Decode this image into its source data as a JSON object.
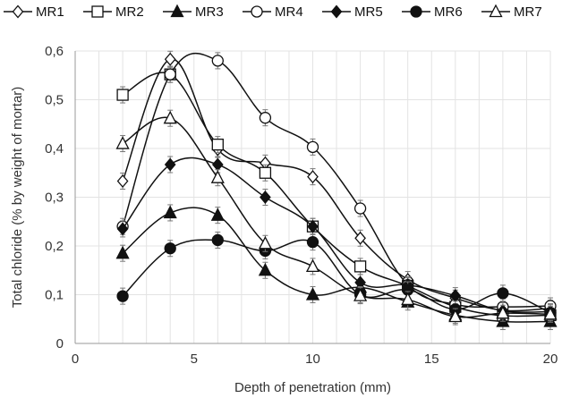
{
  "chart_data": {
    "type": "scatter",
    "title": "",
    "xlabel": "Depth of penetration (mm)",
    "ylabel": "Total chloride (% by weight of mortar)",
    "xlim": [
      0,
      20
    ],
    "ylim": [
      0,
      0.6
    ],
    "xticks": [
      0,
      5,
      10,
      15,
      20
    ],
    "yticks": [
      0,
      0.1,
      0.2,
      0.3,
      0.4,
      0.5,
      0.6
    ],
    "xtick_labels": [
      "0",
      "5",
      "10",
      "15",
      "20"
    ],
    "ytick_labels": [
      "0",
      "0,1",
      "0,2",
      "0,3",
      "0,4",
      "0,5",
      "0,6"
    ],
    "grid": true,
    "legend_position": "top",
    "series": [
      {
        "name": "MR1",
        "marker": "open-diamond",
        "x": [
          2,
          4,
          6,
          8,
          10,
          12,
          14,
          16,
          18,
          20
        ],
        "y": [
          0.333,
          0.583,
          0.398,
          0.37,
          0.342,
          0.216,
          0.131,
          0.093,
          0.068,
          0.072
        ]
      },
      {
        "name": "MR2",
        "marker": "open-square",
        "x": [
          2,
          4,
          6,
          8,
          10,
          12,
          14,
          16,
          18,
          20
        ],
        "y": [
          0.51,
          0.552,
          0.408,
          0.35,
          0.24,
          0.158,
          0.118,
          0.075,
          0.057,
          0.058
        ]
      },
      {
        "name": "MR3",
        "marker": "filled-triangle",
        "x": [
          2,
          4,
          6,
          8,
          10,
          12,
          14,
          16,
          18,
          20
        ],
        "y": [
          0.185,
          0.268,
          0.263,
          0.15,
          0.1,
          0.115,
          0.085,
          0.058,
          0.045,
          0.045
        ]
      },
      {
        "name": "MR4",
        "marker": "open-circle",
        "x": [
          2,
          4,
          6,
          8,
          10,
          12,
          14,
          16,
          18,
          20
        ],
        "y": [
          0.24,
          0.552,
          0.58,
          0.463,
          0.403,
          0.277,
          0.12,
          0.08,
          0.075,
          0.077
        ]
      },
      {
        "name": "MR5",
        "marker": "filled-diamond",
        "x": [
          2,
          4,
          6,
          8,
          10,
          12,
          14,
          16,
          18,
          20
        ],
        "y": [
          0.235,
          0.367,
          0.367,
          0.3,
          0.24,
          0.125,
          0.12,
          0.098,
          0.067,
          0.065
        ]
      },
      {
        "name": "MR6",
        "marker": "filled-circle",
        "x": [
          2,
          4,
          6,
          8,
          10,
          12,
          14,
          16,
          18,
          20
        ],
        "y": [
          0.097,
          0.195,
          0.212,
          0.19,
          0.208,
          0.1,
          0.11,
          0.07,
          0.103,
          0.063
        ]
      },
      {
        "name": "MR7",
        "marker": "open-triangle",
        "x": [
          2,
          4,
          6,
          8,
          10,
          12,
          14,
          16,
          18,
          20
        ],
        "y": [
          0.41,
          0.462,
          0.34,
          0.205,
          0.158,
          0.098,
          0.09,
          0.055,
          0.062,
          0.06
        ]
      }
    ]
  }
}
